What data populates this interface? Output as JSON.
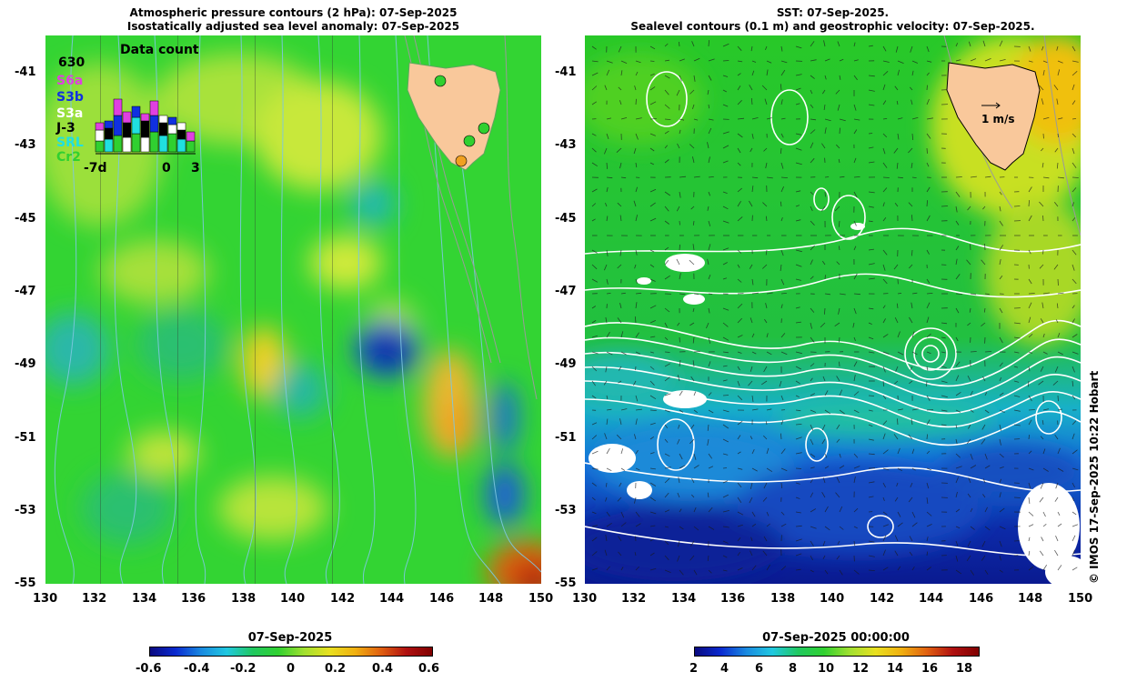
{
  "left_panel": {
    "title_line1": "Atmospheric pressure contours (2 hPa): 07-Sep-2025",
    "title_line2": "Isostatically adjusted sea level anomaly: 07-Sep-2025"
  },
  "right_panel": {
    "title_line1": "SST: 07-Sep-2025.",
    "title_line2": "Sealevel contours (0.1 m) and geostrophic velocity: 07-Sep-2025.",
    "velocity_scale_label": "1 m/s"
  },
  "axes": {
    "x_ticks": [
      "130",
      "132",
      "134",
      "136",
      "138",
      "140",
      "142",
      "144",
      "146",
      "148",
      "150"
    ],
    "y_ticks": [
      "-41",
      "-43",
      "-45",
      "-47",
      "-49",
      "-51",
      "-53",
      "-55"
    ]
  },
  "data_count_inset": {
    "title": "Data count",
    "max_value": "630",
    "satellites": [
      {
        "name": "S6a",
        "color": "#e040e0"
      },
      {
        "name": "S3b",
        "color": "#1030e0"
      },
      {
        "name": "S3a",
        "color": "#ffffff"
      },
      {
        "name": "J-3",
        "color": "#000000"
      },
      {
        "name": "SRL",
        "color": "#20e0e0"
      },
      {
        "name": "Cr2",
        "color": "#30d030"
      }
    ],
    "x_labels": [
      "-7d",
      "0",
      "3"
    ]
  },
  "colorbar_left": {
    "title": "07-Sep-2025",
    "ticks": [
      "-0.6",
      "-0.4",
      "-0.2",
      "0",
      "0.2",
      "0.4",
      "0.6"
    ]
  },
  "colorbar_right": {
    "title": "07-Sep-2025 00:00:00",
    "ticks": [
      "2",
      "4",
      "6",
      "8",
      "10",
      "12",
      "14",
      "16",
      "18"
    ]
  },
  "credit": "© IMOS 17-Sep-2025 10:22 Hobart",
  "colors": {
    "land": "#f9c89b",
    "sla_base": "#33d433",
    "sst_warm": "#20c020",
    "sst_cold": "#0a1a9a"
  }
}
